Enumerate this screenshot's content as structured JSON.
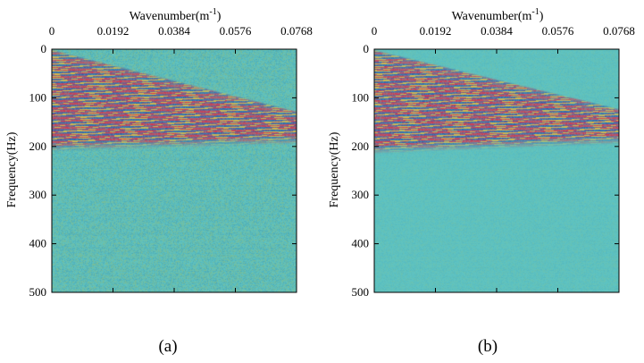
{
  "colors": {
    "background_field": "#5ec4c4",
    "noise_cool": "#3a8fa6",
    "noise_warm": "#9bb35a",
    "event_red": "#d8324a",
    "event_yellow": "#e8b43a",
    "event_blue": "#2a5fb0"
  },
  "chart_data": [
    {
      "type": "heatmap",
      "panel": "a",
      "caption": "(a)",
      "xlabel": "Wavenumber(m",
      "xlabel_sup": "-1",
      "xlabel_end": ")",
      "ylabel": "Frequency(Hz)",
      "x_axis_position": "top",
      "xlim": [
        0,
        0.0768
      ],
      "ylim": [
        0,
        500
      ],
      "y_inverted": true,
      "x_ticks": [
        0,
        0.0192,
        0.0384,
        0.0576,
        0.0768
      ],
      "x_tick_labels": [
        "0",
        "0.0192",
        "0.0384",
        "0.0576",
        "0.0768"
      ],
      "y_ticks": [
        0,
        100,
        200,
        300,
        400,
        500
      ],
      "y_tick_labels": [
        "0",
        "100",
        "200",
        "300",
        "400",
        "500"
      ],
      "grid": false,
      "noise_level": "high",
      "energy_wedge": {
        "upper_edge": [
          [
            0.004,
            10
          ],
          [
            0.0768,
            130
          ]
        ],
        "lower_edge": [
          [
            0.0,
            190
          ],
          [
            0.0768,
            175
          ]
        ]
      }
    },
    {
      "type": "heatmap",
      "panel": "b",
      "caption": "(b)",
      "xlabel": "Wavenumber(m",
      "xlabel_sup": "-1",
      "xlabel_end": ")",
      "ylabel": "Frequency(Hz)",
      "x_axis_position": "top",
      "xlim": [
        0,
        0.0768
      ],
      "ylim": [
        0,
        500
      ],
      "y_inverted": true,
      "x_ticks": [
        0,
        0.0192,
        0.0384,
        0.0576,
        0.0768
      ],
      "x_tick_labels": [
        "0",
        "0.0192",
        "0.0384",
        "0.0576",
        "0.0768"
      ],
      "y_ticks": [
        0,
        100,
        200,
        300,
        400,
        500
      ],
      "y_tick_labels": [
        "0",
        "100",
        "200",
        "300",
        "400",
        "500"
      ],
      "grid": false,
      "noise_level": "low",
      "energy_wedge": {
        "upper_edge": [
          [
            0.004,
            10
          ],
          [
            0.0768,
            125
          ]
        ],
        "lower_edge": [
          [
            0.0,
            195
          ],
          [
            0.0768,
            175
          ]
        ]
      }
    }
  ]
}
